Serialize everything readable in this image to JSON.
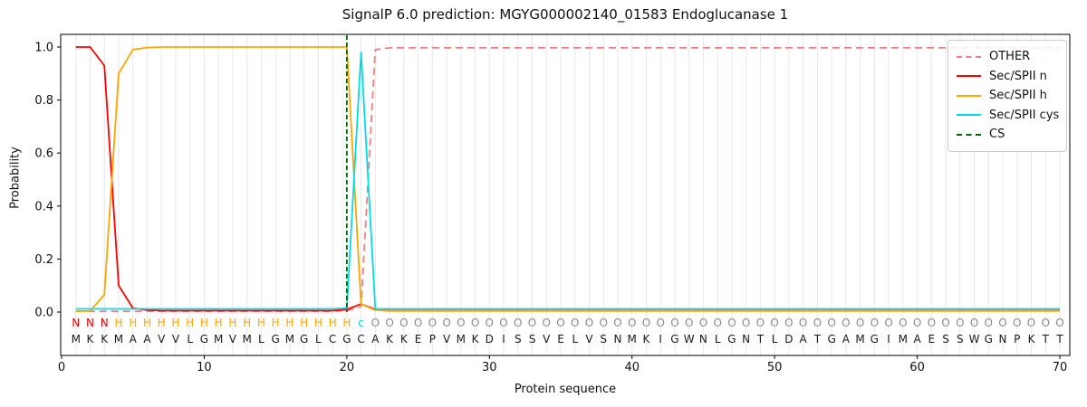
{
  "title": "SignalP 6.0 prediction: MGYG000002140_01583 Endoglucanase 1",
  "chart_data": {
    "type": "line",
    "title": "SignalP 6.0 prediction: MGYG000002140_01583 Endoglucanase 1",
    "xlabel": "Protein sequence",
    "ylabel": "Probability",
    "xticks": [
      0,
      10,
      20,
      30,
      40,
      50,
      60,
      70
    ],
    "ytick_labels": [
      "0.0",
      "0.2",
      "0.4",
      "0.6",
      "0.8",
      "1.0"
    ],
    "yticks": [
      0.0,
      0.2,
      0.4,
      0.6,
      0.8,
      1.0
    ],
    "xlim": [
      0,
      70.7
    ],
    "ylim": [
      -0.164,
      1.048
    ],
    "grid": "vertical-per-residue",
    "grid_color": "#e8e8e8",
    "legend_position": "upper right",
    "legend": [
      {
        "label": "OTHER",
        "color": "#f08080",
        "dash": true
      },
      {
        "label": "Sec/SPII n",
        "color": "#ff0000",
        "dash": false
      },
      {
        "label": "Sec/SPII h",
        "color": "#ffa500",
        "dash": false
      },
      {
        "label": "Sec/SPII cys",
        "color": "#00dde6",
        "dash": false
      },
      {
        "label": "CS",
        "color": "#006400",
        "dash": true
      }
    ],
    "series": [
      {
        "name": "OTHER",
        "color": "#f08080",
        "dash": true,
        "values": [
          0.003,
          0.003,
          0.003,
          0.003,
          0.003,
          0.003,
          0.003,
          0.003,
          0.003,
          0.003,
          0.003,
          0.003,
          0.003,
          0.003,
          0.003,
          0.003,
          0.003,
          0.003,
          0.003,
          0.005,
          0.02,
          0.99,
          0.997,
          0.997,
          0.997,
          0.997,
          0.997,
          0.997,
          0.997,
          0.997,
          0.997,
          0.997,
          0.997,
          0.997,
          0.997,
          0.997,
          0.997,
          0.997,
          0.997,
          0.997,
          0.997,
          0.997,
          0.997,
          0.997,
          0.997,
          0.997,
          0.997,
          0.997,
          0.997,
          0.997,
          0.997,
          0.997,
          0.997,
          0.997,
          0.997,
          0.997,
          0.997,
          0.997,
          0.997,
          0.997,
          0.997,
          0.997,
          0.997,
          0.997,
          0.997,
          0.997,
          0.997,
          0.997,
          0.997,
          0.997
        ]
      },
      {
        "name": "Sec/SPII n",
        "color": "#ff0000",
        "dash": false,
        "values": [
          1.0,
          1.0,
          0.93,
          0.1,
          0.015,
          0.007,
          0.005,
          0.005,
          0.005,
          0.005,
          0.005,
          0.005,
          0.005,
          0.005,
          0.005,
          0.005,
          0.005,
          0.005,
          0.005,
          0.01,
          0.03,
          0.01,
          0.005,
          0.005,
          0.005,
          0.005,
          0.005,
          0.005,
          0.005,
          0.005,
          0.005,
          0.005,
          0.005,
          0.005,
          0.005,
          0.005,
          0.005,
          0.005,
          0.005,
          0.005,
          0.005,
          0.005,
          0.005,
          0.005,
          0.005,
          0.005,
          0.005,
          0.005,
          0.005,
          0.005,
          0.005,
          0.005,
          0.005,
          0.005,
          0.005,
          0.005,
          0.005,
          0.005,
          0.005,
          0.005,
          0.005,
          0.005,
          0.005,
          0.005,
          0.005,
          0.005,
          0.005,
          0.005,
          0.005,
          0.005
        ]
      },
      {
        "name": "Sec/SPII h",
        "color": "#ffa500",
        "dash": false,
        "values": [
          0.003,
          0.004,
          0.065,
          0.9,
          0.99,
          0.998,
          1.0,
          1.0,
          1.0,
          1.0,
          1.0,
          1.0,
          1.0,
          1.0,
          1.0,
          1.0,
          1.0,
          1.0,
          1.0,
          1.0,
          0.03,
          0.007,
          0.004,
          0.004,
          0.004,
          0.004,
          0.004,
          0.004,
          0.004,
          0.004,
          0.004,
          0.004,
          0.004,
          0.004,
          0.004,
          0.004,
          0.004,
          0.004,
          0.004,
          0.004,
          0.004,
          0.004,
          0.004,
          0.004,
          0.004,
          0.004,
          0.004,
          0.004,
          0.004,
          0.004,
          0.004,
          0.004,
          0.004,
          0.004,
          0.004,
          0.004,
          0.004,
          0.004,
          0.004,
          0.004,
          0.004,
          0.004,
          0.004,
          0.004,
          0.004,
          0.004,
          0.004,
          0.004,
          0.004,
          0.004
        ]
      },
      {
        "name": "Sec/SPII cys",
        "color": "#00dde6",
        "dash": false,
        "values": [
          0.012,
          0.012,
          0.012,
          0.012,
          0.012,
          0.012,
          0.012,
          0.012,
          0.012,
          0.012,
          0.012,
          0.012,
          0.012,
          0.012,
          0.012,
          0.012,
          0.012,
          0.012,
          0.012,
          0.015,
          0.98,
          0.012,
          0.012,
          0.012,
          0.012,
          0.012,
          0.012,
          0.012,
          0.012,
          0.012,
          0.012,
          0.012,
          0.012,
          0.012,
          0.012,
          0.012,
          0.012,
          0.012,
          0.012,
          0.012,
          0.012,
          0.012,
          0.012,
          0.012,
          0.012,
          0.012,
          0.012,
          0.012,
          0.012,
          0.012,
          0.012,
          0.012,
          0.012,
          0.012,
          0.012,
          0.012,
          0.012,
          0.012,
          0.012,
          0.012,
          0.012,
          0.012,
          0.012,
          0.012,
          0.012,
          0.012,
          0.012,
          0.012,
          0.012,
          0.012
        ]
      }
    ],
    "cs_line": {
      "name": "CS",
      "x": 20,
      "color": "#006400",
      "dash": true
    },
    "sequence": "MKKMAAVVLGMVMLGMGLCGCAKKEPVMKDISSVELVSNMKIGWNLGNTLDATGAMGIMAESSWGNPKTT",
    "annotation": "NNNHHHHHHHHHHHHHHHHHcOOOOOOOOOOOOOOOOOOOOOOOOOOOOOOOOOOOOOOOOOOOOOOOOO",
    "annotation_colors": {
      "N": "#e60000",
      "H": "#ffa500",
      "c": "#00cfe0",
      "O": "#8a8a8a"
    },
    "sequence_color": "#1a1a1a"
  }
}
